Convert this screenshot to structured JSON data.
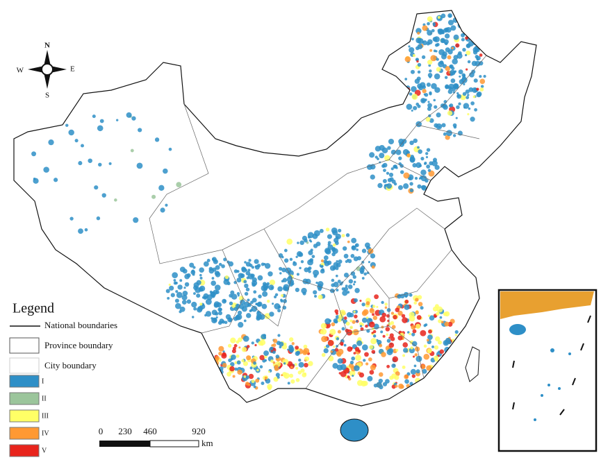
{
  "compass": {
    "north": "N",
    "south": "S",
    "east": "E",
    "west": "W"
  },
  "legend": {
    "title": "Legend",
    "national": "National boundaries",
    "province": "Province boundary",
    "city": "City boundary",
    "classes": [
      {
        "label": "I",
        "color": "#2e8fc7"
      },
      {
        "label": "II",
        "color": "#9bc59b"
      },
      {
        "label": "III",
        "color": "#ffff66"
      },
      {
        "label": "IV",
        "color": "#ff9933"
      },
      {
        "label": "V",
        "color": "#e8241c"
      }
    ]
  },
  "scale_bar": {
    "labels": [
      "0",
      "230",
      "460",
      "920"
    ],
    "unit": "km"
  }
}
